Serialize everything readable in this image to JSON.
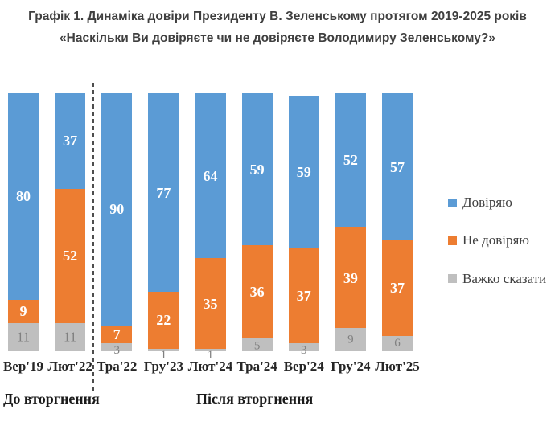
{
  "title": {
    "line1": "Графік 1. Динаміка довіри Президенту В. Зеленському протягом 2019-2025 років",
    "line2": "«Наскільки Ви довіряєте чи не довіряєте Володимиру Зеленському?»"
  },
  "chart_data": {
    "type": "bar",
    "stacked": true,
    "units": "percent",
    "ylim": [
      0,
      100
    ],
    "grid": false,
    "legend_position": "right",
    "categories": [
      "Вер'19",
      "Лют'22",
      "Тра'22",
      "Гру'23",
      "Лют'24",
      "Тра'24",
      "Вер'24",
      "Гру'24",
      "Лют'25"
    ],
    "series": [
      {
        "name": "Довіряю",
        "color": "#5B9BD5",
        "values": [
          80,
          37,
          90,
          77,
          64,
          59,
          59,
          52,
          57
        ]
      },
      {
        "name": "Не довіряю",
        "color": "#ED7D31",
        "values": [
          9,
          52,
          7,
          22,
          35,
          36,
          37,
          39,
          37
        ]
      },
      {
        "name": "Важко сказати",
        "color": "#BFBFBF",
        "values": [
          11,
          11,
          3,
          1,
          1,
          5,
          3,
          9,
          6
        ]
      }
    ],
    "divider_after_index": 1
  },
  "annotations": {
    "before": "До вторгнення",
    "after": "Після вторгнення"
  },
  "colors": {
    "trust": "#5B9BD5",
    "distrust": "#ED7D31",
    "hard_to_say": "#BFBFBF",
    "title_text": "#3f3f3f",
    "divider": "#4d4d4d"
  }
}
